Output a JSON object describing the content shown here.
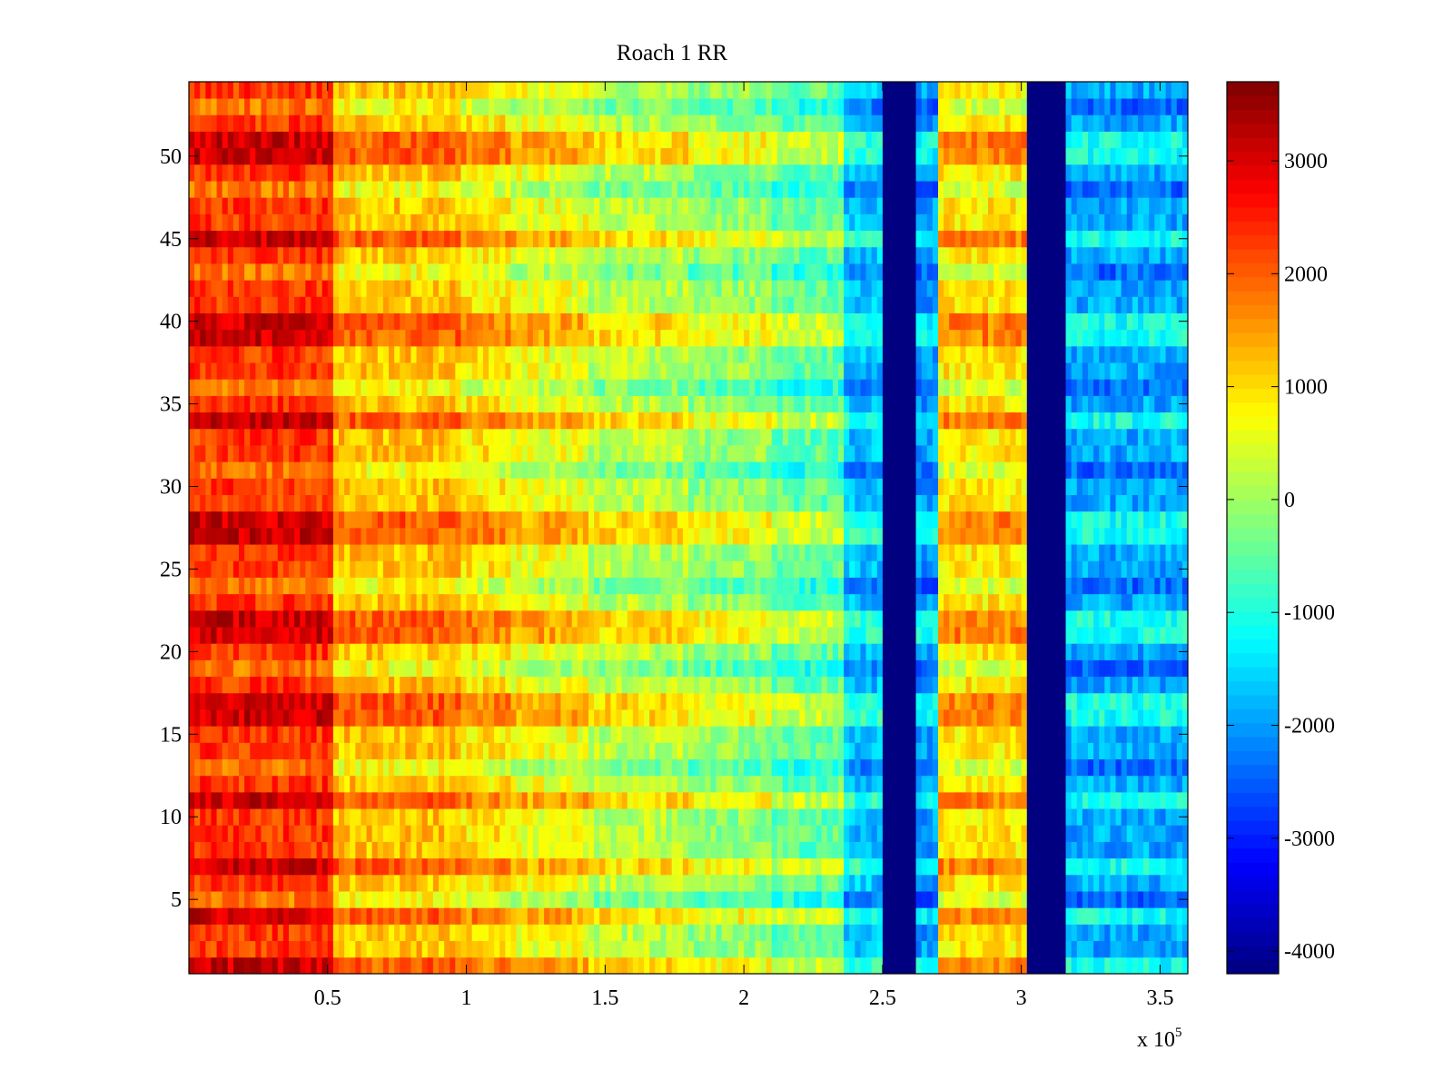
{
  "chart_data": {
    "type": "heatmap",
    "title": "Roach 1 RR",
    "xlabel": "",
    "ylabel": "",
    "x_exponent_label": "x 10",
    "x_exponent_power": "5",
    "xlim": [
      0,
      3.6
    ],
    "ylim": [
      0.5,
      54.5
    ],
    "x_ticks": [
      0.5,
      1,
      1.5,
      2,
      2.5,
      3,
      3.5
    ],
    "x_tick_labels": [
      "0.5",
      "1",
      "1.5",
      "2",
      "2.5",
      "3",
      "3.5"
    ],
    "y_ticks": [
      5,
      10,
      15,
      20,
      25,
      30,
      35,
      40,
      45,
      50
    ],
    "y_tick_labels": [
      "5",
      "10",
      "15",
      "20",
      "25",
      "30",
      "35",
      "40",
      "45",
      "50"
    ],
    "n_rows": 54,
    "colormap": "jet",
    "colorbar": {
      "clim": [
        -4200,
        3700
      ],
      "ticks": [
        -4000,
        -3000,
        -2000,
        -1000,
        0,
        1000,
        2000,
        3000
      ],
      "tick_labels": [
        "-4000",
        "-3000",
        "-2000",
        "-1000",
        "0",
        "1000",
        "2000",
        "3000"
      ]
    },
    "column_bands": [
      {
        "x_start": 0.0,
        "x_end": 0.53,
        "mean_value": 2300
      },
      {
        "x_start": 0.53,
        "x_end": 0.98,
        "mean_value": 1200
      },
      {
        "x_start": 0.98,
        "x_end": 1.17,
        "mean_value": 900
      },
      {
        "x_start": 1.17,
        "x_end": 1.45,
        "mean_value": 600
      },
      {
        "x_start": 1.45,
        "x_end": 1.8,
        "mean_value": 200
      },
      {
        "x_start": 1.8,
        "x_end": 2.1,
        "mean_value": -100
      },
      {
        "x_start": 2.1,
        "x_end": 2.35,
        "mean_value": -500
      },
      {
        "x_start": 2.35,
        "x_end": 2.5,
        "mean_value": -1700
      },
      {
        "x_start": 2.5,
        "x_end": 2.62,
        "mean_value": -4200
      },
      {
        "x_start": 2.62,
        "x_end": 2.7,
        "mean_value": -2000
      },
      {
        "x_start": 2.7,
        "x_end": 3.03,
        "mean_value": 900
      },
      {
        "x_start": 3.03,
        "x_end": 3.17,
        "mean_value": -4200
      },
      {
        "x_start": 3.17,
        "x_end": 3.6,
        "mean_value": -1900
      }
    ],
    "row_offsets": {
      "high_rows": [
        1,
        4,
        7,
        11,
        16,
        17,
        21,
        22,
        27,
        28,
        34,
        39,
        40,
        45,
        50,
        51
      ],
      "low_rows": [
        5,
        13,
        19,
        24,
        31,
        36,
        43,
        48,
        53
      ],
      "high_offset": 800,
      "low_offset": -500
    }
  }
}
